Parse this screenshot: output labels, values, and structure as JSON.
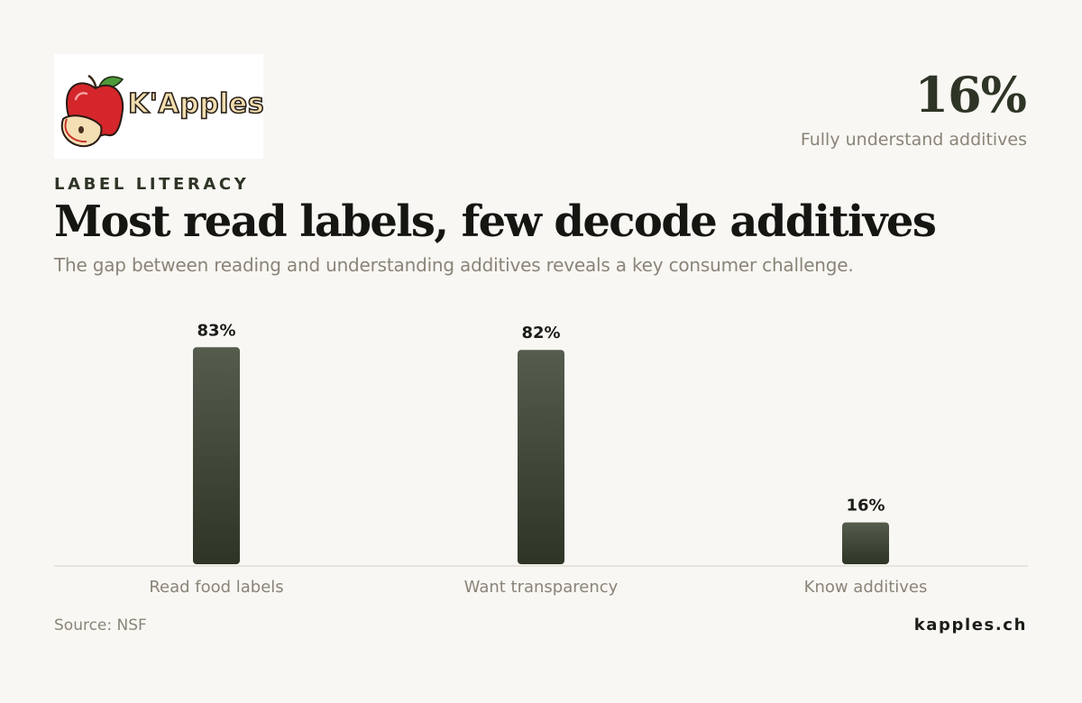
{
  "brand": {
    "logo_text": "K'Apples",
    "site": "kapples.ch"
  },
  "kpi": {
    "value": "16%",
    "label": "Fully understand additives"
  },
  "header": {
    "eyebrow": "LABEL LITERACY",
    "title": "Most read labels, few decode additives",
    "subtitle": "The gap between reading and understanding additives reveals a key consumer challenge."
  },
  "footer": {
    "source": "Source: NSF"
  },
  "colors": {
    "bar_top": "#555c4d",
    "bar_bottom": "#2e3526",
    "axis": "#dcd8d0",
    "muted_text": "#8a8479"
  },
  "chart_data": {
    "type": "bar",
    "title": "Most read labels, few decode additives",
    "categories": [
      "Read food labels",
      "Want transparency",
      "Know additives"
    ],
    "values": [
      83,
      82,
      16
    ],
    "value_labels": [
      "83%",
      "82%",
      "16%"
    ],
    "unit": "%",
    "ylim": [
      0,
      100
    ],
    "grid": false,
    "legend": "none"
  }
}
